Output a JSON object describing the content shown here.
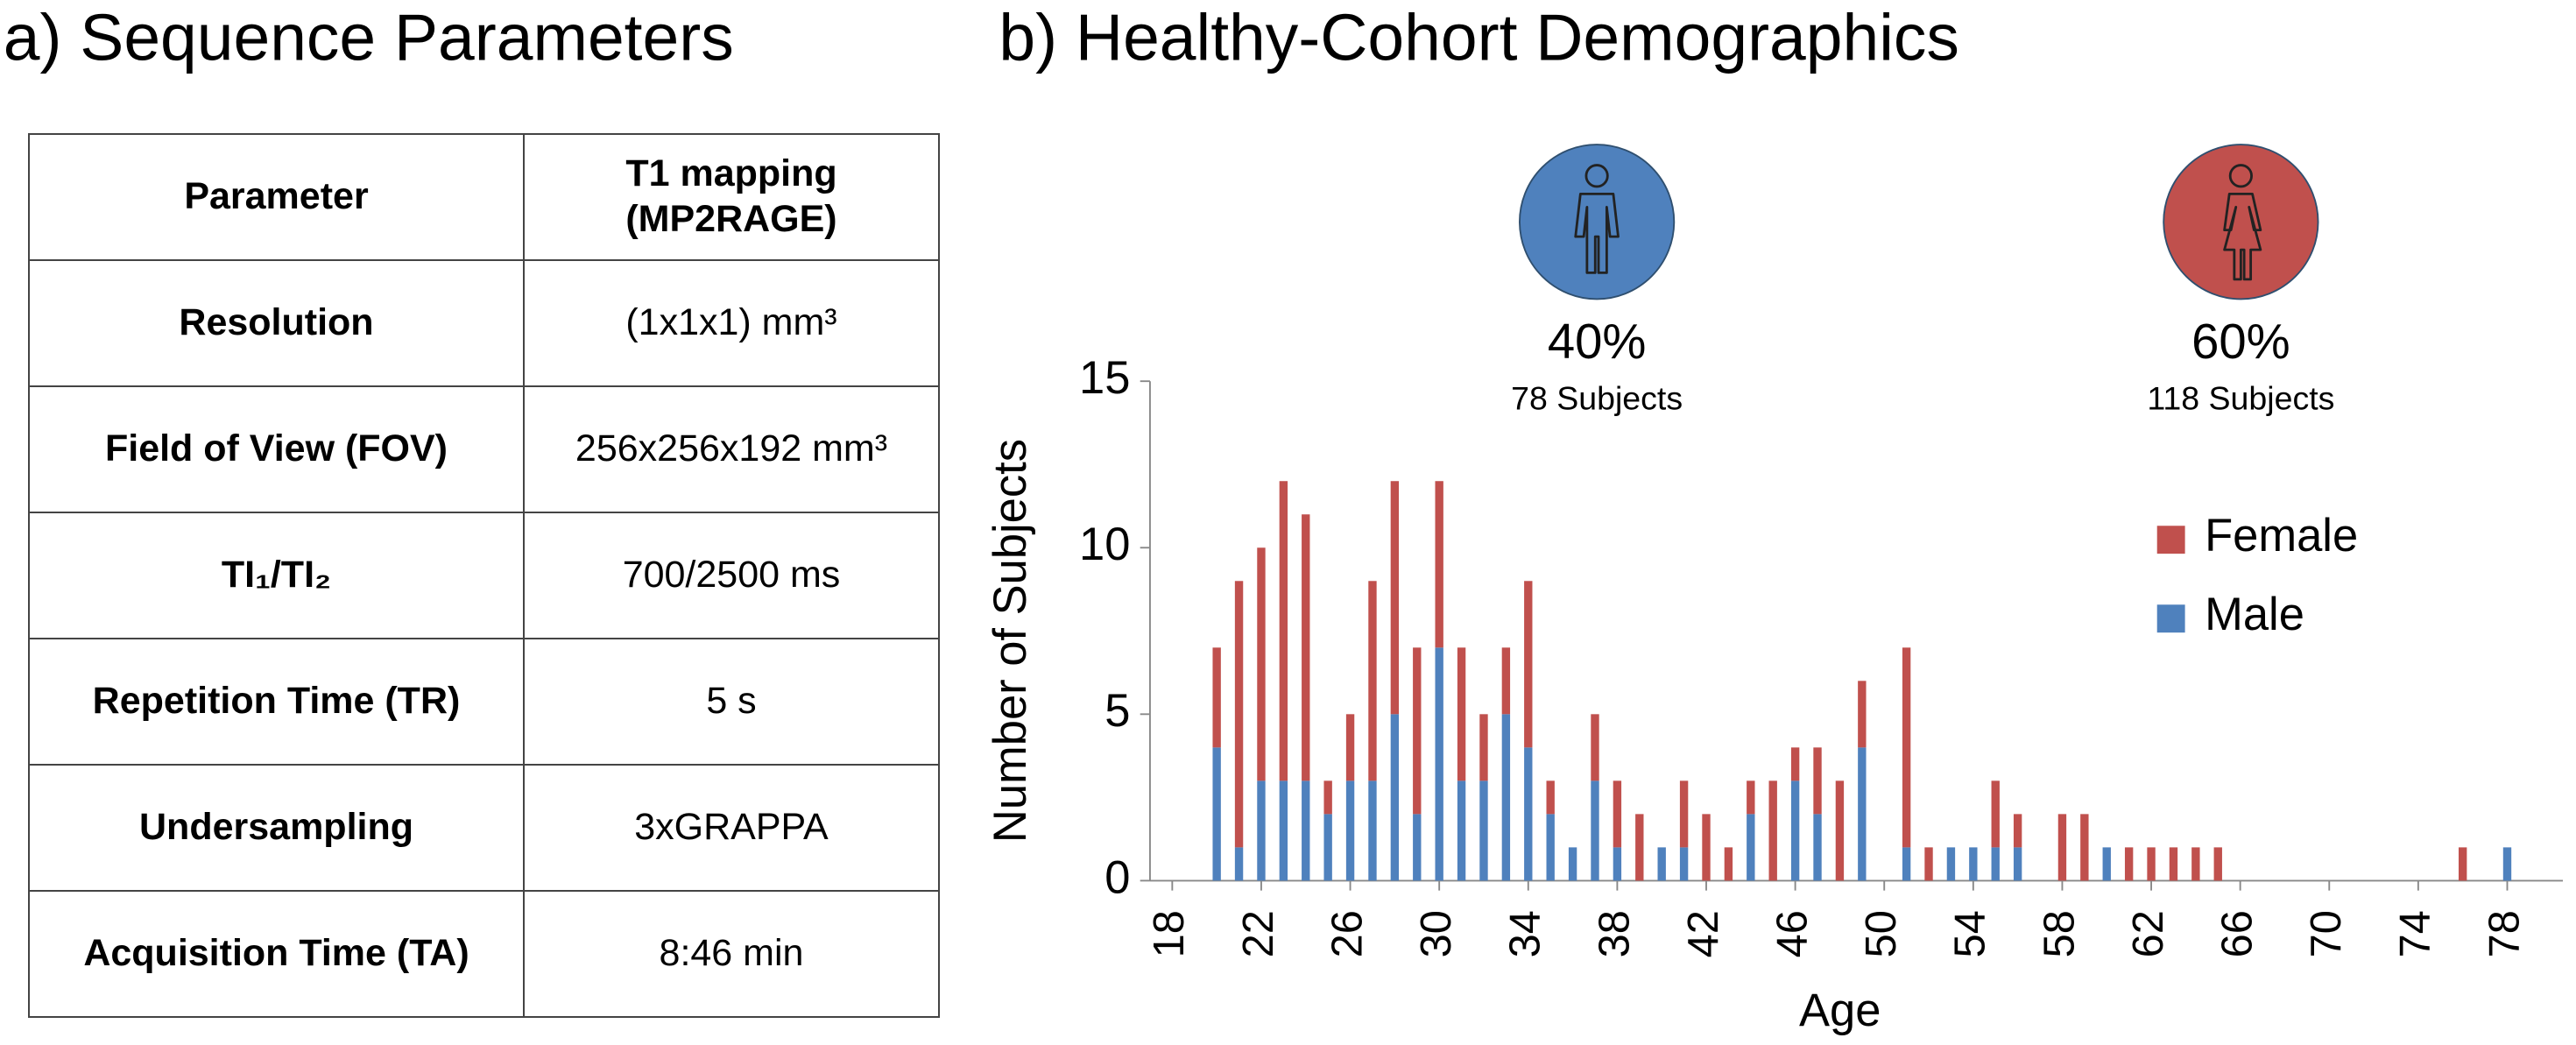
{
  "panel_a_title": "a) Sequence Parameters",
  "table": {
    "header": [
      "Parameter",
      "T1 mapping\n(MP2RAGE)"
    ],
    "rows": [
      [
        "Resolution",
        "(1x1x1) mm³"
      ],
      [
        "Field of View (FOV)",
        "256x256x192 mm³"
      ],
      [
        "TI₁/TI₂",
        "700/2500 ms"
      ],
      [
        "Repetition Time (TR)",
        "5 s"
      ],
      [
        "Undersampling",
        "3xGRAPPA"
      ],
      [
        "Acquisition Time (TA)",
        "8:46 min"
      ]
    ]
  },
  "chart_data": {
    "type": "stacked_bar",
    "title": "b) Healthy-Cohort Demographics",
    "x_label": "Age",
    "y_label": "Number of Subjects",
    "x": [
      20,
      21,
      22,
      23,
      24,
      25,
      26,
      27,
      28,
      29,
      30,
      31,
      32,
      33,
      34,
      35,
      36,
      37,
      38,
      39,
      40,
      41,
      42,
      43,
      44,
      45,
      46,
      47,
      48,
      49,
      51,
      52,
      53,
      54,
      55,
      56,
      58,
      59,
      60,
      61,
      62,
      63,
      64,
      65,
      76,
      78
    ],
    "series": [
      {
        "name": "Male",
        "color": "#4f81bd",
        "values": [
          4,
          1,
          3,
          3,
          3,
          2,
          3,
          3,
          5,
          2,
          7,
          3,
          3,
          5,
          4,
          2,
          1,
          3,
          1,
          0,
          1,
          1,
          0,
          0,
          2,
          0,
          3,
          2,
          0,
          4,
          1,
          0,
          1,
          1,
          1,
          1,
          0,
          0,
          1,
          0,
          0,
          0,
          0,
          0,
          0,
          1
        ]
      },
      {
        "name": "Female",
        "color": "#c0504d",
        "values": [
          3,
          8,
          7,
          9,
          8,
          1,
          2,
          6,
          7,
          5,
          5,
          4,
          2,
          2,
          5,
          1,
          0,
          2,
          2,
          2,
          0,
          2,
          2,
          1,
          1,
          3,
          1,
          2,
          3,
          2,
          6,
          1,
          0,
          0,
          2,
          1,
          2,
          2,
          0,
          1,
          1,
          1,
          1,
          1,
          1,
          0
        ]
      }
    ],
    "xlim": [
      17,
      80.5
    ],
    "xticks": [
      18,
      22,
      26,
      30,
      34,
      38,
      42,
      46,
      50,
      54,
      58,
      62,
      66,
      70,
      74,
      78
    ],
    "ylim": [
      0,
      15
    ],
    "yticks": [
      0,
      5,
      10,
      15
    ],
    "legend": "right",
    "annotations": [
      {
        "percent": "40%",
        "subjects": "78 Subjects",
        "color": "#4f81bd"
      },
      {
        "percent": "60%",
        "subjects": "118 Subjects",
        "color": "#c0504d"
      }
    ]
  }
}
